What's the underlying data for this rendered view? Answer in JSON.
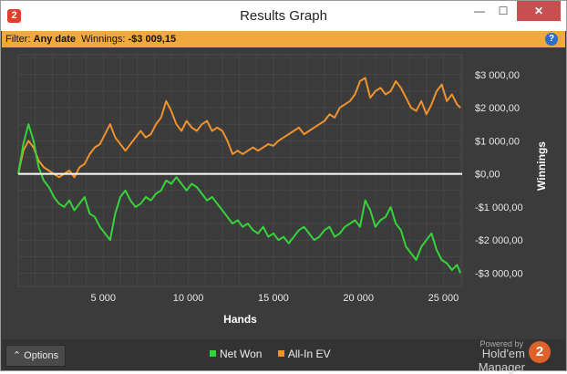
{
  "window": {
    "title": "Results Graph",
    "app_icon_glyph": "2",
    "minimize_glyph": "—",
    "maximize_glyph": "☐",
    "close_glyph": "✕"
  },
  "filter": {
    "filter_label": "Filter: ",
    "filter_value": "Any date",
    "winnings_label": "  Winnings: ",
    "winnings_value": "-$3 009,15",
    "help_glyph": "?"
  },
  "bottom": {
    "options_label": "⌃  Options",
    "powered_by": "Powered by",
    "brand_name": "Hold'em Manager",
    "brand_logo_glyph": "2"
  },
  "colors": {
    "net_won": "#35d43a",
    "all_in_ev": "#f0922d",
    "zero_line": "#ffffff",
    "plot_bg": "#3b3b3b",
    "grid": "#4d4d4d",
    "filter_bar": "#f2a93c",
    "close_button": "#c74f4f"
  },
  "chart_data": {
    "type": "line",
    "xlabel": "Hands",
    "ylabel": "Winnings",
    "xlim": [
      0,
      26100
    ],
    "ylim": [
      -3400,
      3600
    ],
    "x_ticks": [
      5000,
      10000,
      15000,
      20000,
      25000
    ],
    "x_tick_labels": [
      "5 000",
      "10 000",
      "15 000",
      "20 000",
      "25 000"
    ],
    "y_ticks": [
      3000,
      2000,
      1000,
      0,
      -1000,
      -2000,
      -3000
    ],
    "y_tick_labels": [
      "$3 000,00",
      "$2 000,00",
      "$1 000,00",
      "$0,00",
      "-$1 000,00",
      "-$2 000,00",
      "-$3 000,00"
    ],
    "grid": true,
    "legend_position": "bottom",
    "series": [
      {
        "name": "Net Won",
        "x": [
          0,
          300,
          600,
          900,
          1200,
          1500,
          1800,
          2100,
          2400,
          2700,
          3000,
          3300,
          3600,
          3900,
          4200,
          4500,
          4800,
          5100,
          5400,
          5700,
          6000,
          6300,
          6600,
          6900,
          7200,
          7500,
          7800,
          8100,
          8400,
          8700,
          9000,
          9300,
          9600,
          9900,
          10200,
          10500,
          10800,
          11100,
          11400,
          11700,
          12000,
          12300,
          12600,
          12900,
          13200,
          13500,
          13800,
          14100,
          14400,
          14700,
          15000,
          15300,
          15600,
          15900,
          16200,
          16500,
          16800,
          17100,
          17400,
          17700,
          18000,
          18300,
          18600,
          18900,
          19200,
          19500,
          19800,
          20100,
          20400,
          20700,
          21000,
          21300,
          21600,
          21900,
          22200,
          22500,
          22800,
          23100,
          23400,
          23700,
          24000,
          24300,
          24600,
          24900,
          25200,
          25500,
          25800,
          26000
        ],
        "y": [
          0,
          900,
          1500,
          1000,
          200,
          -200,
          -400,
          -700,
          -900,
          -1000,
          -800,
          -1100,
          -900,
          -700,
          -1200,
          -1300,
          -1600,
          -1800,
          -2000,
          -1200,
          -700,
          -500,
          -800,
          -1000,
          -900,
          -700,
          -800,
          -600,
          -500,
          -200,
          -300,
          -100,
          -300,
          -500,
          -300,
          -400,
          -600,
          -800,
          -700,
          -900,
          -1100,
          -1300,
          -1500,
          -1400,
          -1600,
          -1500,
          -1700,
          -1800,
          -1600,
          -1900,
          -1800,
          -2000,
          -1900,
          -2100,
          -1900,
          -1700,
          -1600,
          -1800,
          -2000,
          -1900,
          -1700,
          -1600,
          -1900,
          -1800,
          -1600,
          -1500,
          -1400,
          -1600,
          -800,
          -1100,
          -1600,
          -1400,
          -1300,
          -1000,
          -1500,
          -1700,
          -2200,
          -2400,
          -2600,
          -2200,
          -2000,
          -1800,
          -2300,
          -2600,
          -2700,
          -2900,
          -2750,
          -3000
        ]
      },
      {
        "name": "All-In EV",
        "x": [
          0,
          300,
          600,
          900,
          1200,
          1500,
          1800,
          2100,
          2400,
          2700,
          3000,
          3300,
          3600,
          3900,
          4200,
          4500,
          4800,
          5100,
          5400,
          5700,
          6000,
          6300,
          6600,
          6900,
          7200,
          7500,
          7800,
          8100,
          8400,
          8700,
          9000,
          9300,
          9600,
          9900,
          10200,
          10500,
          10800,
          11100,
          11400,
          11700,
          12000,
          12300,
          12600,
          12900,
          13200,
          13500,
          13800,
          14100,
          14400,
          14700,
          15000,
          15300,
          15600,
          15900,
          16200,
          16500,
          16800,
          17100,
          17400,
          17700,
          18000,
          18300,
          18600,
          18900,
          19200,
          19500,
          19800,
          20100,
          20400,
          20700,
          21000,
          21300,
          21600,
          21900,
          22200,
          22500,
          22800,
          23100,
          23400,
          23700,
          24000,
          24300,
          24600,
          24900,
          25200,
          25500,
          25800,
          26000
        ],
        "y": [
          0,
          700,
          1000,
          800,
          400,
          200,
          100,
          0,
          -100,
          0,
          100,
          -100,
          200,
          300,
          600,
          800,
          900,
          1200,
          1500,
          1100,
          900,
          700,
          900,
          1100,
          1300,
          1100,
          1200,
          1500,
          1700,
          2200,
          1900,
          1500,
          1300,
          1600,
          1400,
          1300,
          1500,
          1600,
          1300,
          1400,
          1300,
          1000,
          600,
          700,
          600,
          700,
          800,
          700,
          800,
          900,
          850,
          1000,
          1100,
          1200,
          1300,
          1400,
          1200,
          1300,
          1400,
          1500,
          1600,
          1800,
          1700,
          2000,
          2100,
          2200,
          2400,
          2800,
          2900,
          2300,
          2500,
          2600,
          2400,
          2500,
          2800,
          2600,
          2300,
          2000,
          1900,
          2200,
          1800,
          2100,
          2500,
          2700,
          2200,
          2400,
          2100,
          2000
        ]
      }
    ]
  }
}
